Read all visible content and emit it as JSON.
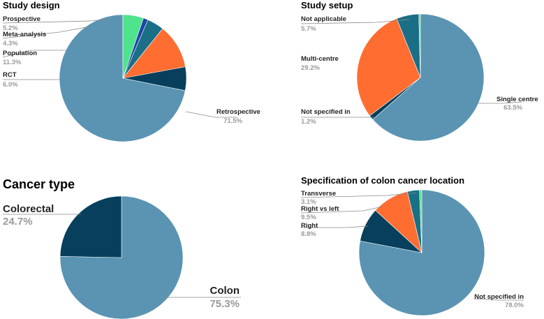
{
  "chart_data": [
    {
      "type": "pie",
      "title": "Study design",
      "start": "top",
      "direction": "counterclockwise",
      "slices": [
        {
          "label": "Retrospective",
          "value": 71.5,
          "pct_label": "71.5%",
          "color": "#5a94b2"
        },
        {
          "label": "RCT",
          "value": 6.0,
          "pct_label": "6.0%",
          "color": "#073f5c"
        },
        {
          "label": "Population",
          "value": 11.3,
          "pct_label": "11.3%",
          "color": "#ff6d31"
        },
        {
          "label": "Meta-analysis",
          "value": 4.3,
          "pct_label": "4.3%",
          "color": "#1a6f86"
        },
        {
          "label": "",
          "value": 1.2,
          "pct_label": "",
          "color": "#1e44a8"
        },
        {
          "label": "Prospective",
          "value": 5.2,
          "pct_label": "5.2%",
          "color": "#4ee38c"
        }
      ]
    },
    {
      "type": "pie",
      "title": "Study setup",
      "start": "top",
      "direction": "clockwise",
      "slices": [
        {
          "label": "Single centre",
          "value": 63.5,
          "pct_label": "63.5%",
          "color": "#5a94b2"
        },
        {
          "label": "Not specified in",
          "value": 1.2,
          "pct_label": "1.2%",
          "color": "#073f5c"
        },
        {
          "label": "Multi-centre",
          "value": 29.2,
          "pct_label": "29.2%",
          "color": "#ff6d31"
        },
        {
          "label": "Not applicable",
          "value": 5.7,
          "pct_label": "5.7%",
          "color": "#1a6f86"
        },
        {
          "label": "",
          "value": 0.4,
          "pct_label": "",
          "color": "#4ee38c"
        }
      ]
    },
    {
      "type": "pie",
      "title": "Cancer type",
      "start": "top",
      "direction": "clockwise",
      "slices": [
        {
          "label": "Colon",
          "value": 75.3,
          "pct_label": "75.3%",
          "color": "#5a94b2"
        },
        {
          "label": "Colorectal",
          "value": 24.7,
          "pct_label": "24.7%",
          "color": "#073f5c"
        }
      ]
    },
    {
      "type": "pie",
      "title": "Specification of colon cancer location",
      "start": "top",
      "direction": "clockwise",
      "slices": [
        {
          "label": "Not specified in",
          "value": 78.0,
          "pct_label": "78.0%",
          "color": "#5a94b2"
        },
        {
          "label": "Right",
          "value": 8.8,
          "pct_label": "8.8%",
          "color": "#073f5c"
        },
        {
          "label": "Right vs left",
          "value": 9.5,
          "pct_label": "9.5%",
          "color": "#ff6d31"
        },
        {
          "label": "Transverse",
          "value": 3.1,
          "pct_label": "3.1%",
          "color": "#1a6f86"
        },
        {
          "label": "",
          "value": 0.6,
          "pct_label": "",
          "color": "#4ee38c"
        }
      ]
    }
  ]
}
